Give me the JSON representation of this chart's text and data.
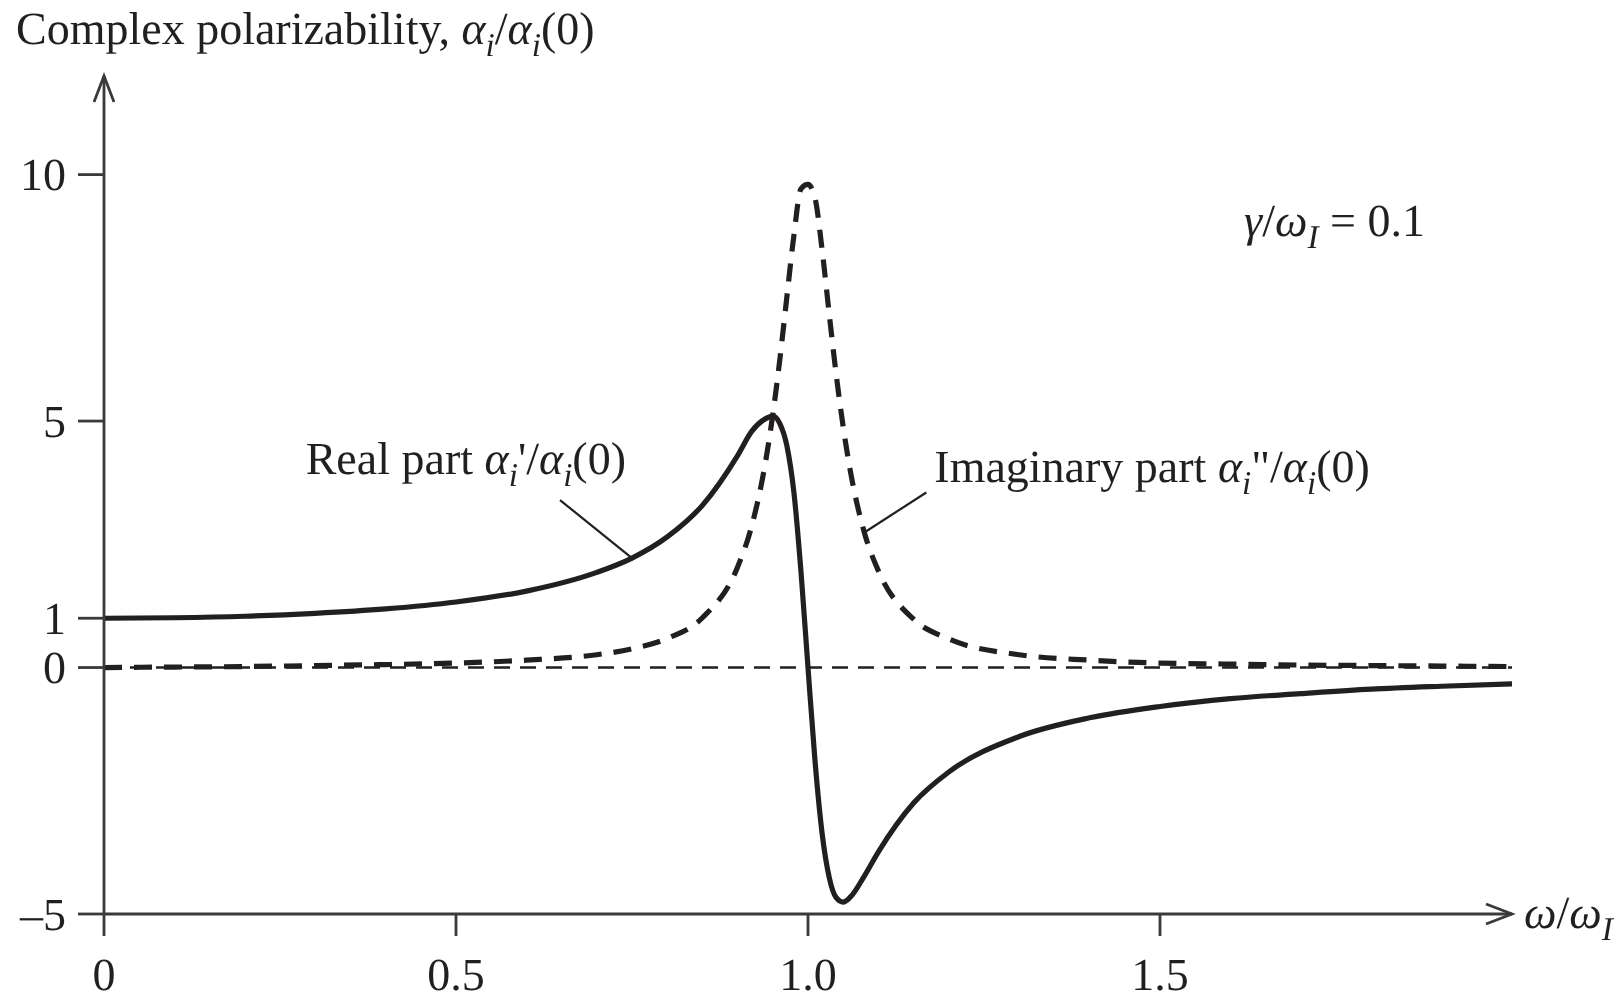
{
  "chart_data": {
    "type": "line",
    "ylabel": "Complex polarizability, α$_{i}$/α$_{i}$(0)",
    "xlabel": "ω/ω$_{I}$",
    "x": [
      0,
      0.1,
      0.2,
      0.3,
      0.4,
      0.5,
      0.6,
      0.7,
      0.75,
      0.8,
      0.85,
      0.9,
      0.92,
      0.94,
      0.95,
      0.96,
      0.97,
      0.98,
      0.99,
      1.0,
      1.01,
      1.02,
      1.03,
      1.04,
      1.05,
      1.06,
      1.08,
      1.1,
      1.15,
      1.2,
      1.3,
      1.4,
      1.5,
      1.6,
      1.7,
      1.8,
      1.9,
      2.0
    ],
    "series": [
      {
        "name": "Real part α$_{i}$'/α$_{i}$(0)",
        "color": "#231f20",
        "line_style": "solid",
        "values": [
          1,
          1.01,
          1.04,
          1.1,
          1.19,
          1.33,
          1.55,
          1.93,
          2.22,
          2.65,
          3.29,
          4.3,
          4.79,
          5.05,
          5.1,
          4.95,
          4.5,
          3.55,
          1.95,
          0,
          -1.9,
          -3.36,
          -4.25,
          -4.67,
          -4.76,
          -4.66,
          -4.23,
          -3.74,
          -2.75,
          -2.12,
          -1.4,
          -1.02,
          -0.79,
          -0.63,
          -0.53,
          -0.44,
          -0.38,
          -0.33
        ]
      },
      {
        "name": "Imaginary part α$_{i}$\"/α$_{i}$(0)",
        "color": "#231f20",
        "line_style": "dashed",
        "values": [
          0,
          0.01,
          0.02,
          0.04,
          0.06,
          0.09,
          0.15,
          0.26,
          0.38,
          0.59,
          1.01,
          2.04,
          2.87,
          4.2,
          5.13,
          6.25,
          7.52,
          8.77,
          9.71,
          9.8,
          9.52,
          8.48,
          7.19,
          5.95,
          4.88,
          4.0,
          2.74,
          1.96,
          0.98,
          0.58,
          0.26,
          0.15,
          0.09,
          0.07,
          0.05,
          0.04,
          0.03,
          0.02
        ]
      }
    ],
    "xlim": [
      0,
      2
    ],
    "ylim": [
      -5,
      12
    ],
    "xticks": [
      0,
      0.5,
      {
        "value": 1,
        "label": "1.0"
      },
      1.5
    ],
    "yticks": [
      {
        "value": -5,
        "label": "–5"
      },
      0,
      1,
      5,
      10
    ],
    "ref_lines": [
      {
        "axis": "y",
        "value": 0,
        "line_style": "dashed",
        "color": "#231f20"
      }
    ],
    "annotations": [
      "γ/ω$_{I}$ = 0.1"
    ]
  }
}
